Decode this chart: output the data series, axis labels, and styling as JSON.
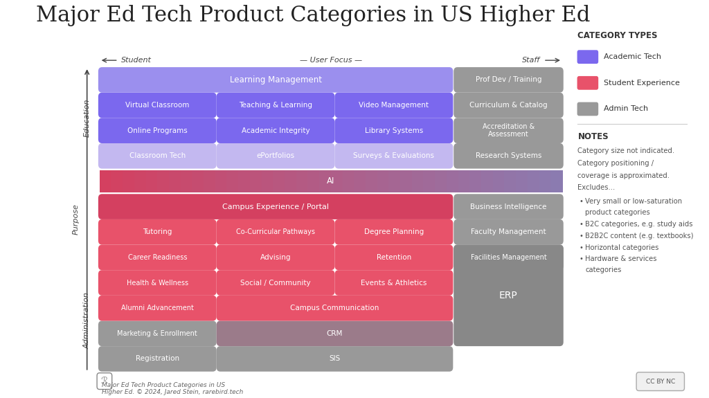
{
  "title": "Major Ed Tech Product Categories in US Higher Ed",
  "bg_color": "#ffffff",
  "title_fontsize": 22,
  "colors": {
    "academic_tech": "#7B68EE",
    "academic_tech_light": "#9B8FEE",
    "academic_tech_lighter": "#C3B8F0",
    "student_exp": "#E8526A",
    "student_exp_dark": "#D44060",
    "admin_tech": "#999999",
    "admin_tech_dark": "#888888",
    "crm_color": "#9B7B8A",
    "ai_left": "#D44060",
    "ai_right": "#8B7BB0",
    "text_white": "#ffffff",
    "text_dark": "#444444",
    "axis_label": "#444444"
  },
  "legend_items": [
    {
      "label": "Academic Tech",
      "color": "#7B68EE"
    },
    {
      "label": "Student Experience",
      "color": "#E8526A"
    },
    {
      "label": "Admin Tech",
      "color": "#999999"
    }
  ],
  "notes_title": "NOTES",
  "notes_text": "Category size not indicated.\nCategory positioning /\ncoverage is approximated.\nExcludes...",
  "bullet_points": [
    "Very small or low-saturation\nproduct categories",
    "B2C categories, e.g. study aids",
    "B2B2C content (e.g. textbooks)",
    "Horizontal categories",
    "Hardware & services\ncategories"
  ],
  "footer_text": "Major Ed Tech Product Categories in US\nHigher Ed. © 2024, Jared Stein, rarebird.tech"
}
